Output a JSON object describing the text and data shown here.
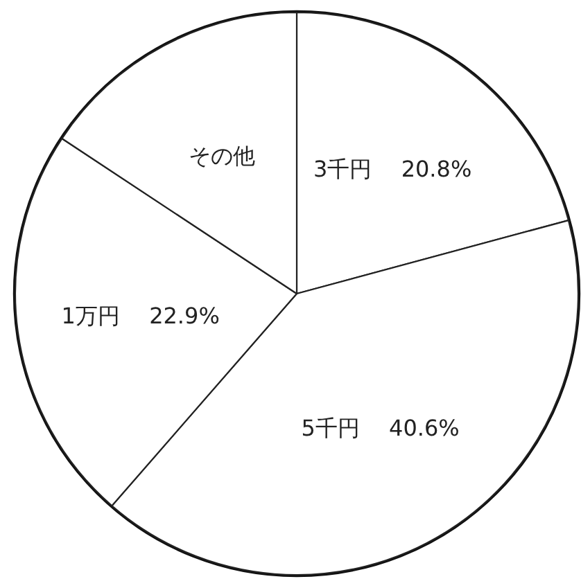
{
  "chart_data": {
    "type": "pie",
    "categories": [
      "3千円",
      "5千円",
      "1万円",
      "その他"
    ],
    "values": [
      20.8,
      40.6,
      22.9,
      15.7
    ],
    "colors": [
      "#ffffff",
      "#ffffff",
      "#ffffff",
      "#ffffff"
    ],
    "value_labels": [
      "20.8%",
      "40.6%",
      "22.9%",
      null
    ]
  }
}
